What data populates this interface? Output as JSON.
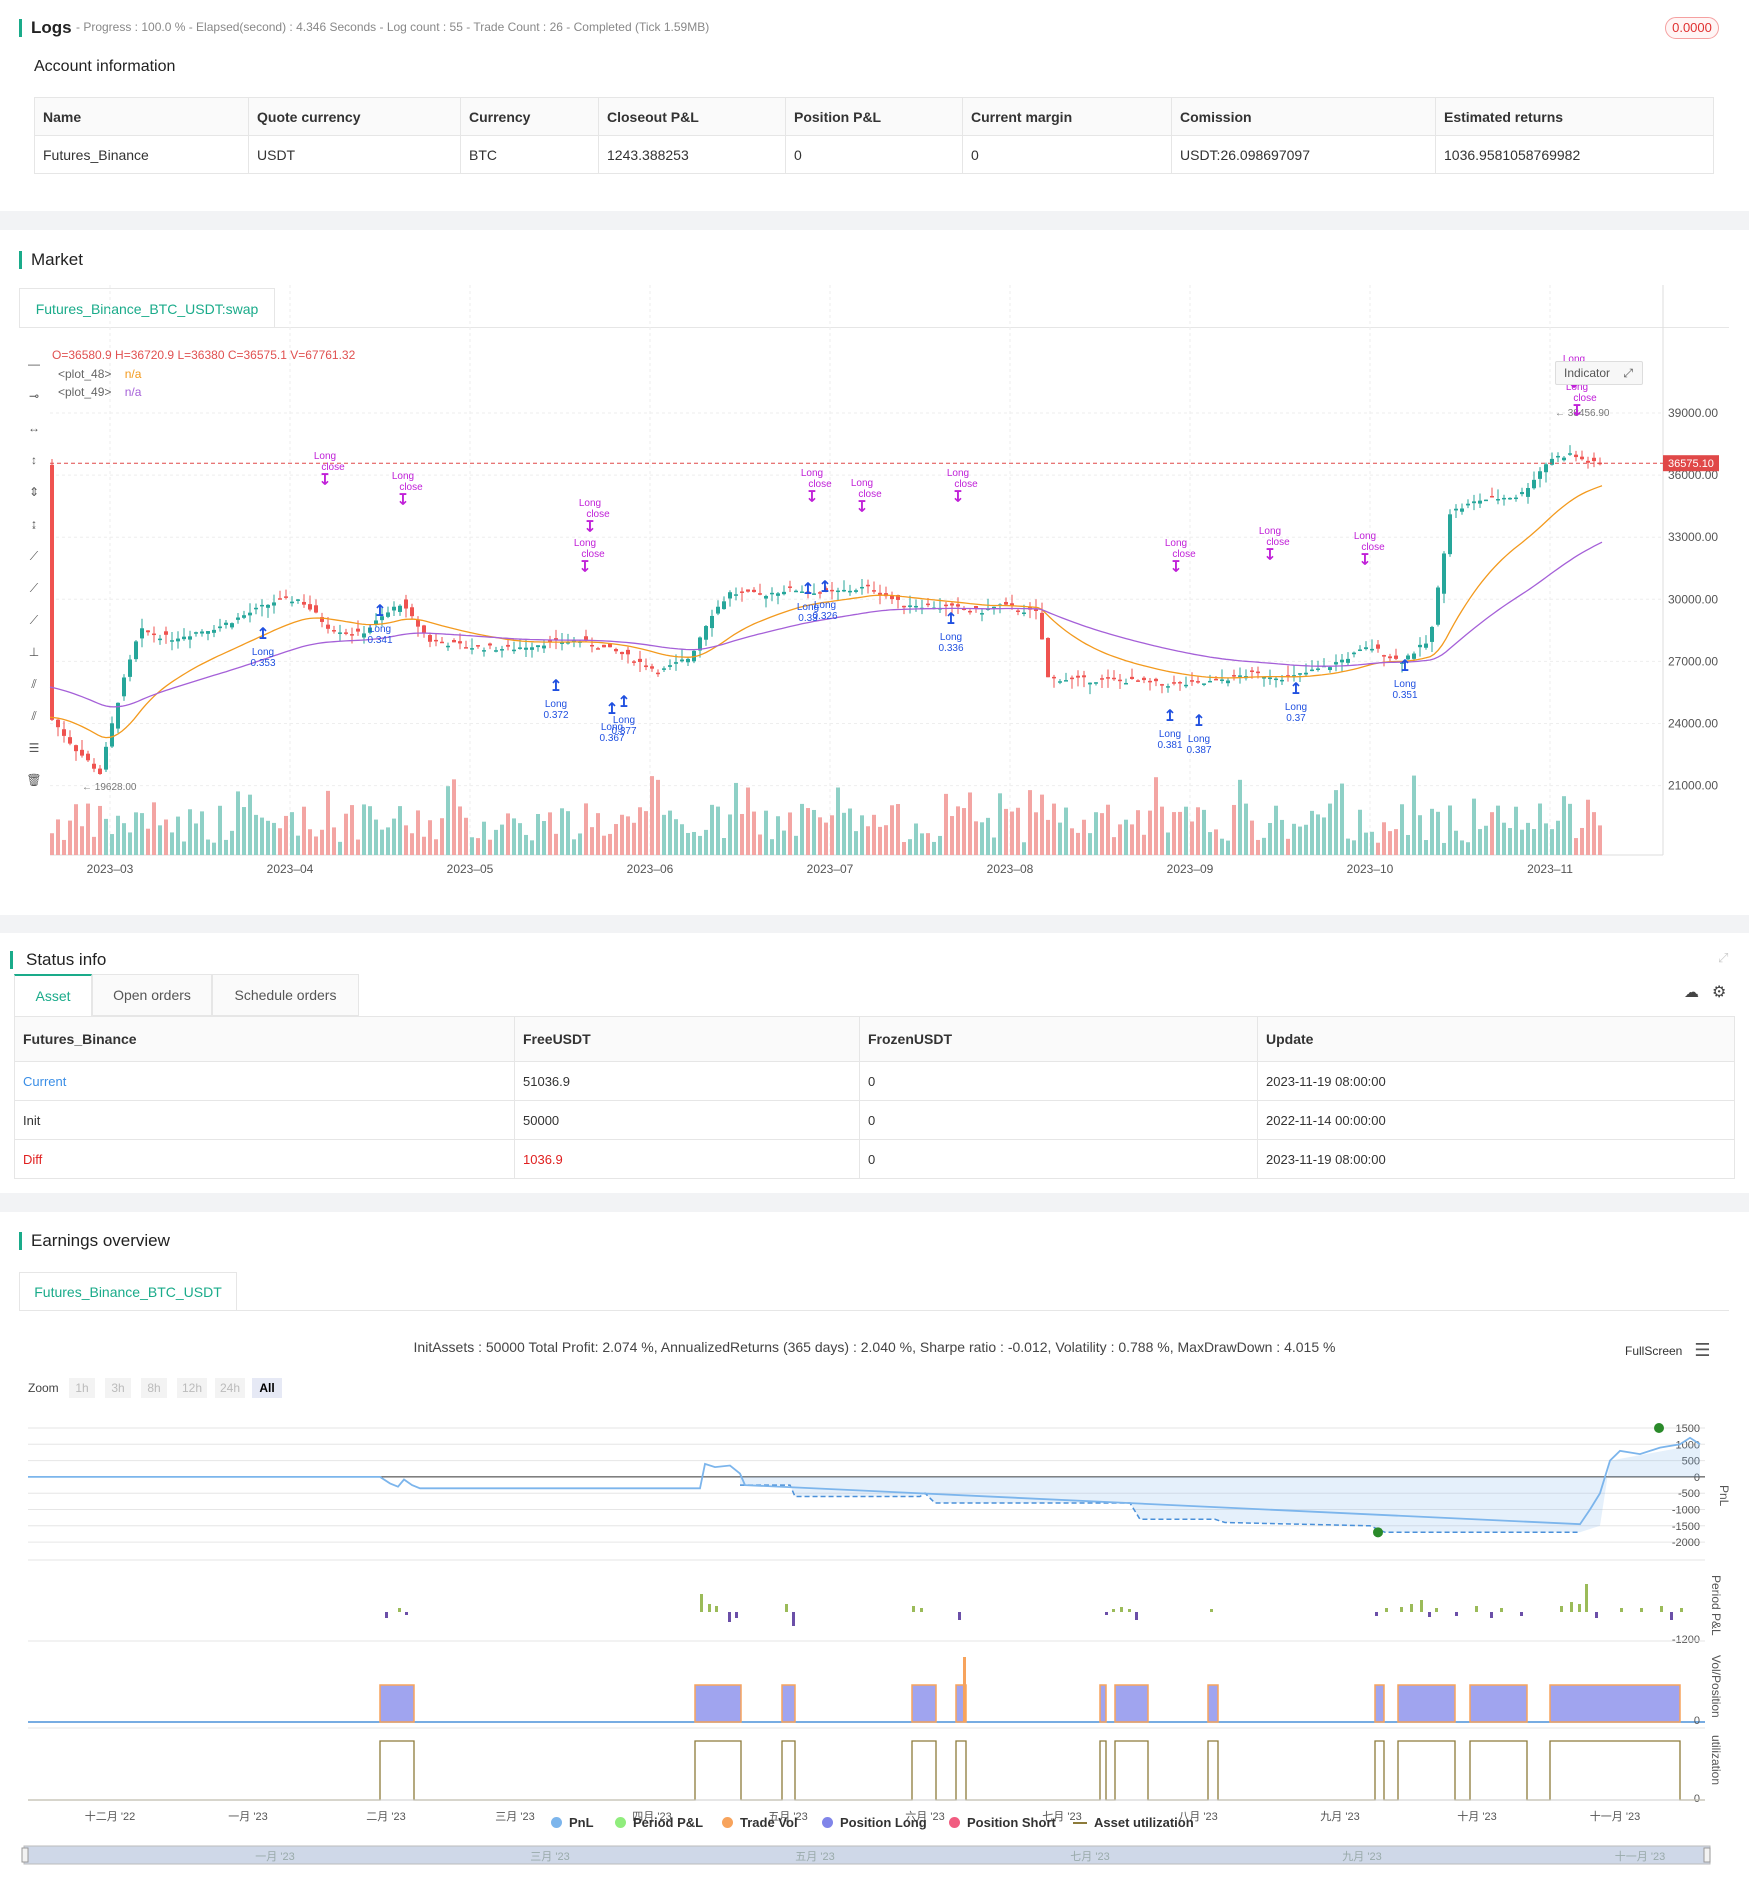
{
  "logs": {
    "title": "Logs",
    "status": "- Progress : 100.0 % - Elapsed(second) : 4.346  Seconds - Log count : 55 - Trade Count : 26 - Completed (Tick 1.59MB)",
    "badge": "0.0000"
  },
  "account": {
    "title": "Account information",
    "headers": [
      "Name",
      "Quote currency",
      "Currency",
      "Closeout P&L",
      "Position P&L",
      "Current margin",
      "Comission",
      "Estimated returns"
    ],
    "row": [
      "Futures_Binance",
      "USDT",
      "BTC",
      "1243.388253",
      "0",
      "0",
      "USDT:26.098697097",
      "1036.9581058769982"
    ]
  },
  "market": {
    "title": "Market",
    "tab": "Futures_Binance_BTC_USDT:swap",
    "ohlc": "O=36580.9 H=36720.9 L=36380 C=36575.1 V=67761.32",
    "plot48": "<plot_48>",
    "plot49": "<plot_49>",
    "na": "n/a",
    "indicator_btn": "Indicator",
    "price_tag": "36575.10",
    "high_tag": "38456.90",
    "low_tag": "19628.00",
    "y_ticks": [
      "39000.00",
      "36000.00",
      "33000.00",
      "30000.00",
      "27000.00",
      "24000.00",
      "21000.00"
    ],
    "x_ticks": [
      "2023–03",
      "2023–04",
      "2023–05",
      "2023–06",
      "2023–07",
      "2023–08",
      "2023–09",
      "2023–10",
      "2023–11"
    ],
    "signal_labels": [
      "Long",
      "close",
      "Long",
      "close",
      "Long",
      "close",
      "Long",
      "close",
      "Long",
      "close",
      "Long",
      "close",
      "Long",
      "close",
      "Long",
      "close",
      "Long",
      "close",
      "Long",
      "close",
      "Long",
      "close",
      "Long",
      "close"
    ],
    "entry_labels": [
      "Long 0.353",
      "Long 0.341",
      "Long 0.372",
      "Long 0.377",
      "Long 0.367",
      "Long 0.33",
      "Long 0.326",
      "Long 0.336",
      "Long 0.381",
      "Long 0.387",
      "Long 0.37",
      "Long 0.351"
    ]
  },
  "status": {
    "title": "Status info",
    "tabs": [
      "Asset",
      "Open orders",
      "Schedule orders"
    ],
    "headers": [
      "Futures_Binance",
      "FreeUSDT",
      "FrozenUSDT",
      "Update"
    ],
    "rows": [
      [
        "Current",
        "51036.9",
        "0",
        "2023-11-19 08:00:00"
      ],
      [
        "Init",
        "50000",
        "0",
        "2022-11-14 00:00:00"
      ],
      [
        "Diff",
        "1036.9",
        "0",
        "2023-11-19 08:00:00"
      ]
    ],
    "colors": {
      "current": "#3a8ee6",
      "diff": "#e02020"
    }
  },
  "earnings": {
    "title": "Earnings overview",
    "tab": "Futures_Binance_BTC_USDT",
    "summary": "InitAssets : 50000 Total Profit: 2.074 %, AnnualizedReturns (365 days) : 2.040 %, Sharpe ratio : -0.012, Volatility : 0.788 %, MaxDrawDown : 4.015 %",
    "fullscreen": "FullScreen",
    "zoom_label": "Zoom",
    "zoom_buttons": [
      "1h",
      "3h",
      "8h",
      "12h",
      "24h",
      "All"
    ],
    "pnl_ticks": [
      "1500",
      "1000",
      "500",
      "0",
      "-500",
      "-1000",
      "-1500",
      "-2000"
    ],
    "period_tick": "-1200",
    "vol_tick": "0",
    "util_tick": "0",
    "axis_titles": [
      "PnL",
      "Period P&L",
      "Vol/Position",
      "utilization"
    ],
    "x_ticks": [
      "十二月 '22",
      "一月 '23",
      "二月 '23",
      "三月 '23",
      "四月 '23",
      "五月 '23",
      "六月 '23",
      "七月 '23",
      "八月 '23",
      "九月 '23",
      "十月 '23",
      "十一月 '23"
    ],
    "nav_ticks": [
      "一月 '23",
      "三月 '23",
      "五月 '23",
      "七月 '23",
      "九月 '23",
      "十一月 '23"
    ],
    "legend": [
      {
        "label": "PnL",
        "color": "#7cb5ec"
      },
      {
        "label": "Period P&L",
        "color": "#90ed7d"
      },
      {
        "label": "Trade Vol",
        "color": "#f7a35c"
      },
      {
        "label": "Position Long",
        "color": "#8085e9"
      },
      {
        "label": "Position Short",
        "color": "#f15c80"
      },
      {
        "label": "Asset utilization",
        "color": "#8d7b3a"
      }
    ]
  }
}
